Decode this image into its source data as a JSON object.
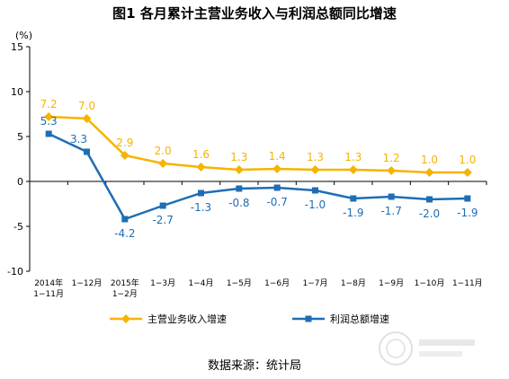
{
  "page": {
    "title": "图1  各月累计主营业务收入与利润总额同比增速",
    "source": "数据来源：统计局"
  },
  "chart_data": {
    "type": "line",
    "unit_label": "(%)",
    "categories": [
      [
        "2014年",
        "1−11月"
      ],
      [
        "1−12月"
      ],
      [
        "2015年",
        "1−2月"
      ],
      [
        "1−3月"
      ],
      [
        "1−4月"
      ],
      [
        "1−5月"
      ],
      [
        "1−6月"
      ],
      [
        "1−7月"
      ],
      [
        "1−8月"
      ],
      [
        "1−9月"
      ],
      [
        "1−10月"
      ],
      [
        "1−11月"
      ]
    ],
    "ylim": [
      -10,
      15
    ],
    "yticks": [
      -10,
      -5,
      0,
      5,
      10,
      15
    ],
    "grid": false,
    "legend_position": "bottom",
    "series": [
      {
        "name": "主营业务收入增速",
        "color": "#F5B400",
        "marker": "diamond",
        "label_position": "above",
        "values": [
          7.2,
          7.0,
          2.9,
          2.0,
          1.6,
          1.3,
          1.4,
          1.3,
          1.3,
          1.2,
          1.0,
          1.0
        ],
        "labels": [
          "7.2",
          "7.0",
          "2.9",
          "2.0",
          "1.6",
          "1.3",
          "1.4",
          "1.3",
          "1.3",
          "1.2",
          "1.0",
          "1.0"
        ]
      },
      {
        "name": "利润总额增速",
        "color": "#1F6DB5",
        "marker": "square",
        "label_position": "mixed",
        "values": [
          5.3,
          3.3,
          -4.2,
          -2.7,
          -1.3,
          -0.8,
          -0.7,
          -1.0,
          -1.9,
          -1.7,
          -2.0,
          -1.9
        ],
        "labels": [
          "5.3",
          "3.3",
          "-4.2",
          "-2.7",
          "-1.3",
          "-0.8",
          "-0.7",
          "-1.0",
          "-1.9",
          "-1.7",
          "-2.0",
          "-1.9"
        ]
      }
    ]
  }
}
